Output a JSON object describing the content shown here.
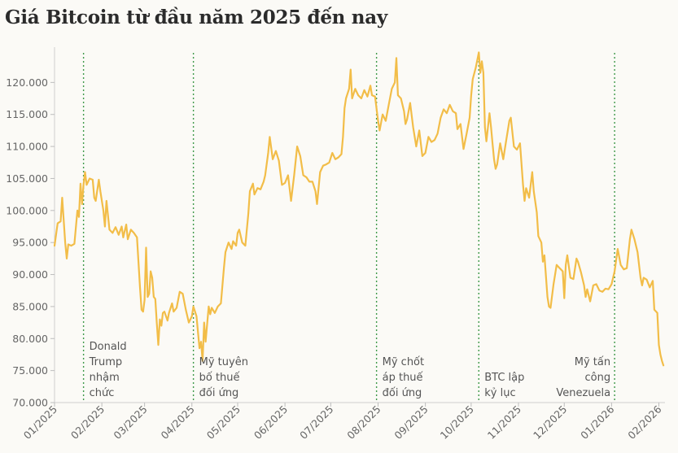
{
  "title": "Giá Bitcoin từ đầu năm 2025 đến nay",
  "chart_data": {
    "type": "line",
    "title": "Giá Bitcoin từ đầu năm 2025 đến nay",
    "xlabel": "",
    "ylabel": "",
    "xlim": [
      "2025-01-01",
      "2026-02-05"
    ],
    "ylim": [
      70000,
      125000
    ],
    "yticks": [
      70000,
      75000,
      80000,
      85000,
      90000,
      95000,
      100000,
      105000,
      110000,
      115000,
      120000
    ],
    "ytick_labels": [
      "70.000",
      "75.000",
      "80.000",
      "85.000",
      "90.000",
      "95.000",
      "100.000",
      "105.000",
      "110.000",
      "115.000",
      "120.000"
    ],
    "xtick_labels": [
      "01/2025",
      "02/2025",
      "03/2025",
      "04/2025",
      "05/2025",
      "06/2025",
      "07/2025",
      "08/2025",
      "09/2025",
      "10/2025",
      "11/2025",
      "12/2025",
      "01/2026",
      "02/2026"
    ],
    "xticks": [
      "2025-01-01",
      "2025-02-01",
      "2025-03-01",
      "2025-04-01",
      "2025-05-01",
      "2025-06-01",
      "2025-07-01",
      "2025-08-01",
      "2025-09-01",
      "2025-10-01",
      "2025-11-01",
      "2025-12-01",
      "2026-01-01",
      "2026-02-01"
    ],
    "grid": false,
    "line_color": "#f2bd48",
    "marker_color": "#3f9a4a",
    "series": [
      {
        "points": [
          [
            "2025-01-01",
            94500
          ],
          [
            "2025-01-03",
            98000
          ],
          [
            "2025-01-05",
            98300
          ],
          [
            "2025-01-06",
            102000
          ],
          [
            "2025-01-08",
            95000
          ],
          [
            "2025-01-09",
            92500
          ],
          [
            "2025-01-10",
            94700
          ],
          [
            "2025-01-12",
            94500
          ],
          [
            "2025-01-14",
            94800
          ],
          [
            "2025-01-16",
            100000
          ],
          [
            "2025-01-17",
            99000
          ],
          [
            "2025-01-18",
            104200
          ],
          [
            "2025-01-19",
            101000
          ],
          [
            "2025-01-20",
            104000
          ],
          [
            "2025-01-21",
            106000
          ],
          [
            "2025-01-22",
            104000
          ],
          [
            "2025-01-24",
            105000
          ],
          [
            "2025-01-26",
            104800
          ],
          [
            "2025-01-27",
            102000
          ],
          [
            "2025-01-28",
            101500
          ],
          [
            "2025-01-30",
            104800
          ],
          [
            "2025-01-31",
            103000
          ],
          [
            "2025-02-02",
            100000
          ],
          [
            "2025-02-03",
            97500
          ],
          [
            "2025-02-04",
            101500
          ],
          [
            "2025-02-06",
            97000
          ],
          [
            "2025-02-08",
            96500
          ],
          [
            "2025-02-10",
            97400
          ],
          [
            "2025-02-12",
            96200
          ],
          [
            "2025-02-14",
            97500
          ],
          [
            "2025-02-15",
            95800
          ],
          [
            "2025-02-17",
            97800
          ],
          [
            "2025-02-18",
            95500
          ],
          [
            "2025-02-20",
            97000
          ],
          [
            "2025-02-22",
            96500
          ],
          [
            "2025-02-24",
            95800
          ],
          [
            "2025-02-25",
            92000
          ],
          [
            "2025-02-26",
            88000
          ],
          [
            "2025-02-27",
            84500
          ],
          [
            "2025-02-28",
            84200
          ],
          [
            "2025-03-01",
            86000
          ],
          [
            "2025-03-02",
            94200
          ],
          [
            "2025-03-03",
            86500
          ],
          [
            "2025-03-04",
            87000
          ],
          [
            "2025-03-05",
            90500
          ],
          [
            "2025-03-06",
            89500
          ],
          [
            "2025-03-07",
            86500
          ],
          [
            "2025-03-08",
            86200
          ],
          [
            "2025-03-09",
            82500
          ],
          [
            "2025-03-10",
            79000
          ],
          [
            "2025-03-11",
            83000
          ],
          [
            "2025-03-12",
            82000
          ],
          [
            "2025-03-13",
            84000
          ],
          [
            "2025-03-14",
            84200
          ],
          [
            "2025-03-15",
            83500
          ],
          [
            "2025-03-16",
            82800
          ],
          [
            "2025-03-17",
            84000
          ],
          [
            "2025-03-19",
            85500
          ],
          [
            "2025-03-20",
            84200
          ],
          [
            "2025-03-22",
            84800
          ],
          [
            "2025-03-24",
            87300
          ],
          [
            "2025-03-26",
            87000
          ],
          [
            "2025-03-28",
            84500
          ],
          [
            "2025-03-30",
            82500
          ],
          [
            "2025-04-01",
            83500
          ],
          [
            "2025-04-02",
            85000
          ],
          [
            "2025-04-04",
            83500
          ],
          [
            "2025-04-06",
            78500
          ],
          [
            "2025-04-07",
            79500
          ],
          [
            "2025-04-08",
            76500
          ],
          [
            "2025-04-09",
            82500
          ],
          [
            "2025-04-10",
            79500
          ],
          [
            "2025-04-12",
            85000
          ],
          [
            "2025-04-13",
            83800
          ],
          [
            "2025-04-14",
            84800
          ],
          [
            "2025-04-16",
            84000
          ],
          [
            "2025-04-18",
            85000
          ],
          [
            "2025-04-20",
            85500
          ],
          [
            "2025-04-22",
            91000
          ],
          [
            "2025-04-23",
            93500
          ],
          [
            "2025-04-25",
            95000
          ],
          [
            "2025-04-27",
            94000
          ],
          [
            "2025-04-28",
            95200
          ],
          [
            "2025-04-30",
            94500
          ],
          [
            "2025-05-01",
            96500
          ],
          [
            "2025-05-02",
            97000
          ],
          [
            "2025-05-04",
            95000
          ],
          [
            "2025-05-06",
            94500
          ],
          [
            "2025-05-08",
            99500
          ],
          [
            "2025-05-09",
            103000
          ],
          [
            "2025-05-11",
            104200
          ],
          [
            "2025-05-12",
            102500
          ],
          [
            "2025-05-14",
            103500
          ],
          [
            "2025-05-16",
            103300
          ],
          [
            "2025-05-18",
            104500
          ],
          [
            "2025-05-19",
            105500
          ],
          [
            "2025-05-21",
            109000
          ],
          [
            "2025-05-22",
            111500
          ],
          [
            "2025-05-24",
            108000
          ],
          [
            "2025-05-26",
            109300
          ],
          [
            "2025-05-28",
            107800
          ],
          [
            "2025-05-30",
            104000
          ],
          [
            "2025-06-01",
            104300
          ],
          [
            "2025-06-03",
            105500
          ],
          [
            "2025-06-05",
            101500
          ],
          [
            "2025-06-07",
            105500
          ],
          [
            "2025-06-09",
            110000
          ],
          [
            "2025-06-11",
            108500
          ],
          [
            "2025-06-13",
            105500
          ],
          [
            "2025-06-15",
            105200
          ],
          [
            "2025-06-17",
            104500
          ],
          [
            "2025-06-19",
            104500
          ],
          [
            "2025-06-21",
            103000
          ],
          [
            "2025-06-22",
            101000
          ],
          [
            "2025-06-24",
            106000
          ],
          [
            "2025-06-26",
            107000
          ],
          [
            "2025-06-28",
            107200
          ],
          [
            "2025-06-30",
            107500
          ],
          [
            "2025-07-02",
            109000
          ],
          [
            "2025-07-04",
            108000
          ],
          [
            "2025-07-06",
            108300
          ],
          [
            "2025-07-08",
            108800
          ],
          [
            "2025-07-09",
            111500
          ],
          [
            "2025-07-10",
            116000
          ],
          [
            "2025-07-11",
            117500
          ],
          [
            "2025-07-13",
            119000
          ],
          [
            "2025-07-14",
            122000
          ],
          [
            "2025-07-15",
            117500
          ],
          [
            "2025-07-17",
            119000
          ],
          [
            "2025-07-19",
            118000
          ],
          [
            "2025-07-21",
            117500
          ],
          [
            "2025-07-23",
            118800
          ],
          [
            "2025-07-25",
            117800
          ],
          [
            "2025-07-27",
            119500
          ],
          [
            "2025-07-28",
            118000
          ],
          [
            "2025-07-30",
            117800
          ],
          [
            "2025-08-01",
            114000
          ],
          [
            "2025-08-02",
            112500
          ],
          [
            "2025-08-04",
            115000
          ],
          [
            "2025-08-06",
            114000
          ],
          [
            "2025-08-08",
            116500
          ],
          [
            "2025-08-10",
            119000
          ],
          [
            "2025-08-12",
            120000
          ],
          [
            "2025-08-13",
            123800
          ],
          [
            "2025-08-14",
            118000
          ],
          [
            "2025-08-16",
            117500
          ],
          [
            "2025-08-18",
            115500
          ],
          [
            "2025-08-19",
            113500
          ],
          [
            "2025-08-20",
            114200
          ],
          [
            "2025-08-22",
            116800
          ],
          [
            "2025-08-24",
            113000
          ],
          [
            "2025-08-26",
            110000
          ],
          [
            "2025-08-28",
            112500
          ],
          [
            "2025-08-30",
            108500
          ],
          [
            "2025-09-01",
            109000
          ],
          [
            "2025-09-03",
            111500
          ],
          [
            "2025-09-05",
            110700
          ],
          [
            "2025-09-07",
            111000
          ],
          [
            "2025-09-09",
            112000
          ],
          [
            "2025-09-11",
            114500
          ],
          [
            "2025-09-13",
            115800
          ],
          [
            "2025-09-15",
            115200
          ],
          [
            "2025-09-17",
            116500
          ],
          [
            "2025-09-19",
            115500
          ],
          [
            "2025-09-21",
            115200
          ],
          [
            "2025-09-22",
            112700
          ],
          [
            "2025-09-24",
            113500
          ],
          [
            "2025-09-26",
            109600
          ],
          [
            "2025-09-28",
            112000
          ],
          [
            "2025-09-30",
            114500
          ],
          [
            "2025-10-01",
            118000
          ],
          [
            "2025-10-02",
            120500
          ],
          [
            "2025-10-04",
            122300
          ],
          [
            "2025-10-06",
            124700
          ],
          [
            "2025-10-07",
            121500
          ],
          [
            "2025-10-08",
            123300
          ],
          [
            "2025-10-09",
            121500
          ],
          [
            "2025-10-10",
            113000
          ],
          [
            "2025-10-11",
            110800
          ],
          [
            "2025-10-13",
            115200
          ],
          [
            "2025-10-14",
            113000
          ],
          [
            "2025-10-15",
            110500
          ],
          [
            "2025-10-16",
            108000
          ],
          [
            "2025-10-17",
            106500
          ],
          [
            "2025-10-18",
            107200
          ],
          [
            "2025-10-20",
            110500
          ],
          [
            "2025-10-22",
            108000
          ],
          [
            "2025-10-24",
            111000
          ],
          [
            "2025-10-26",
            114000
          ],
          [
            "2025-10-27",
            114500
          ],
          [
            "2025-10-29",
            110000
          ],
          [
            "2025-10-31",
            109500
          ],
          [
            "2025-11-02",
            110500
          ],
          [
            "2025-11-04",
            104000
          ],
          [
            "2025-11-05",
            101500
          ],
          [
            "2025-11-06",
            103500
          ],
          [
            "2025-11-08",
            102000
          ],
          [
            "2025-11-10",
            106000
          ],
          [
            "2025-11-11",
            103000
          ],
          [
            "2025-11-13",
            99700
          ],
          [
            "2025-11-14",
            96000
          ],
          [
            "2025-11-16",
            95000
          ],
          [
            "2025-11-17",
            92000
          ],
          [
            "2025-11-18",
            93000
          ],
          [
            "2025-11-20",
            86500
          ],
          [
            "2025-11-21",
            85000
          ],
          [
            "2025-11-22",
            84800
          ],
          [
            "2025-11-24",
            88500
          ],
          [
            "2025-11-26",
            91500
          ],
          [
            "2025-11-28",
            91000
          ],
          [
            "2025-11-30",
            90500
          ],
          [
            "2025-12-01",
            86300
          ],
          [
            "2025-12-02",
            91500
          ],
          [
            "2025-12-03",
            93000
          ],
          [
            "2025-12-05",
            89500
          ],
          [
            "2025-12-07",
            89300
          ],
          [
            "2025-12-09",
            92500
          ],
          [
            "2025-12-10",
            92000
          ],
          [
            "2025-12-12",
            90300
          ],
          [
            "2025-12-14",
            88300
          ],
          [
            "2025-12-15",
            86500
          ],
          [
            "2025-12-16",
            87700
          ],
          [
            "2025-12-18",
            85800
          ],
          [
            "2025-12-20",
            88300
          ],
          [
            "2025-12-22",
            88500
          ],
          [
            "2025-12-24",
            87500
          ],
          [
            "2025-12-26",
            87300
          ],
          [
            "2025-12-28",
            87800
          ],
          [
            "2025-12-30",
            87700
          ],
          [
            "2026-01-01",
            88500
          ],
          [
            "2026-01-03",
            90500
          ],
          [
            "2026-01-05",
            94000
          ],
          [
            "2026-01-07",
            91500
          ],
          [
            "2026-01-09",
            90800
          ],
          [
            "2026-01-11",
            91000
          ],
          [
            "2026-01-13",
            95500
          ],
          [
            "2026-01-14",
            97000
          ],
          [
            "2026-01-16",
            95500
          ],
          [
            "2026-01-18",
            93500
          ],
          [
            "2026-01-20",
            89500
          ],
          [
            "2026-01-21",
            88300
          ],
          [
            "2026-01-22",
            89500
          ],
          [
            "2026-01-24",
            89200
          ],
          [
            "2026-01-26",
            88000
          ],
          [
            "2026-01-27",
            88500
          ],
          [
            "2026-01-28",
            89000
          ],
          [
            "2026-01-29",
            84500
          ],
          [
            "2026-01-31",
            84000
          ],
          [
            "2026-02-01",
            79000
          ],
          [
            "2026-02-02",
            77500
          ],
          [
            "2026-02-03",
            76500
          ],
          [
            "2026-02-04",
            75800
          ]
        ]
      }
    ],
    "annotations": [
      {
        "date": "2025-01-20",
        "lines": [
          "Donald",
          "Trump",
          "nhậm",
          "chức"
        ],
        "align": "right"
      },
      {
        "date": "2025-04-02",
        "lines": [
          "Mỹ tuyên",
          "bố thuế",
          "đối ứng"
        ],
        "align": "right"
      },
      {
        "date": "2025-07-31",
        "lines": [
          "Mỹ chốt",
          "áp thuế",
          "đối ứng"
        ],
        "align": "right"
      },
      {
        "date": "2025-10-06",
        "lines": [
          "BTC lập",
          "kỷ lục"
        ],
        "align": "right"
      },
      {
        "date": "2026-01-03",
        "lines": [
          "Mỹ tấn",
          "công",
          "Venezuela"
        ],
        "align": "left"
      }
    ]
  }
}
